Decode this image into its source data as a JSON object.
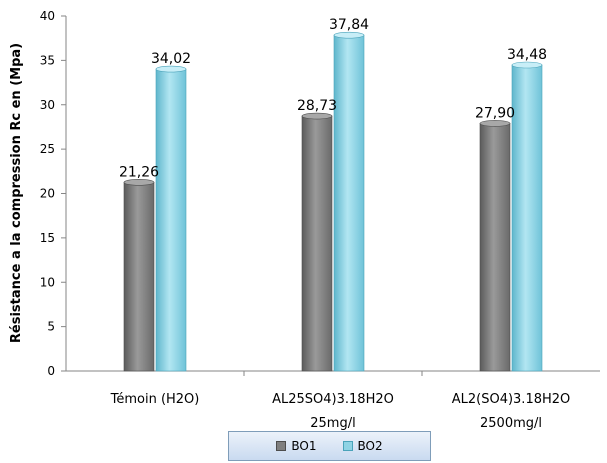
{
  "chart_data": {
    "type": "bar",
    "title": "",
    "xlabel": "",
    "ylabel": "Résistance a la compression Rc en (Mpa)",
    "ylim": [
      0,
      40
    ],
    "yticks": [
      0,
      5,
      10,
      15,
      20,
      25,
      30,
      35,
      40
    ],
    "categories": [
      [
        "Témoin (H2O)"
      ],
      [
        "AL25SO4)3.18H2O",
        "25mg/l"
      ],
      [
        "AL2(SO4)3.18H2O",
        "2500mg/l"
      ]
    ],
    "series": [
      {
        "name": "BO1",
        "values": [
          21.26,
          28.73,
          27.9
        ],
        "labels": [
          "21,26",
          "28,73",
          "27,90"
        ],
        "color": "#7f7f7f"
      },
      {
        "name": "BO2",
        "values": [
          34.02,
          37.84,
          34.48
        ],
        "labels": [
          "34,02",
          "37,84",
          "34,48"
        ],
        "color": "#8ed3e4"
      }
    ],
    "legend": "bottom",
    "grid": false
  }
}
